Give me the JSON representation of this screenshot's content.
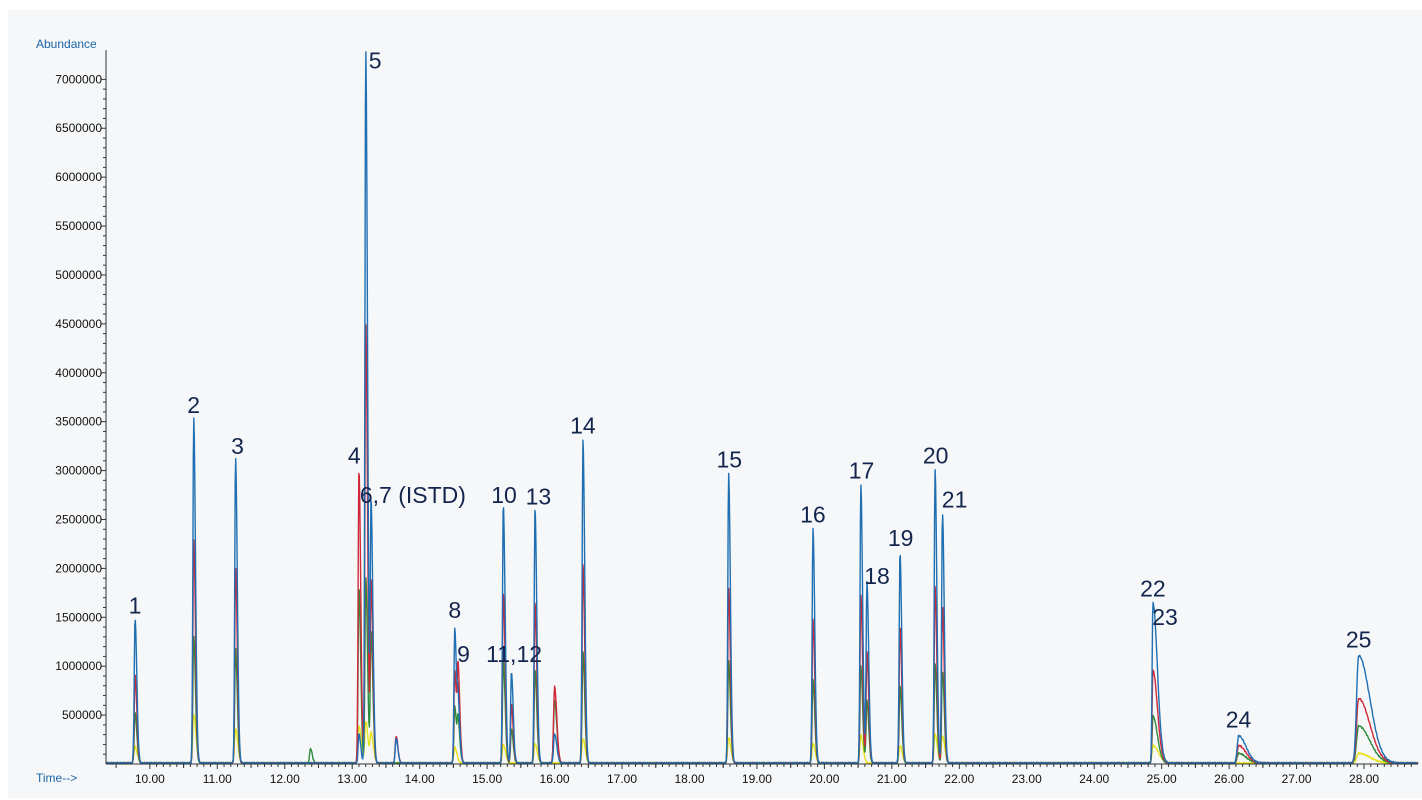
{
  "chart_data": {
    "type": "line",
    "xlabel": "Time-->",
    "ylabel": "Abundance",
    "xlim": [
      9.35,
      28.8
    ],
    "ylim": [
      0,
      7300000
    ],
    "x_ticks": [
      "10.00",
      "11.00",
      "12.00",
      "13.00",
      "14.00",
      "15.00",
      "16.00",
      "17.00",
      "18.00",
      "19.00",
      "20.00",
      "21.00",
      "22.00",
      "23.00",
      "24.00",
      "25.00",
      "26.00",
      "27.00",
      "28.00"
    ],
    "y_ticks": [
      "500000",
      "1000000",
      "1500000",
      "2000000",
      "2500000",
      "3000000",
      "3500000",
      "4000000",
      "4500000",
      "5000000",
      "5500000",
      "6000000",
      "6500000",
      "7000000"
    ],
    "series": [
      {
        "color": "#1f6fb2",
        "peaks": [
          {
            "t": 9.78,
            "h": 1480000,
            "w": 0.012
          },
          {
            "t": 10.65,
            "h": 3530000,
            "w": 0.012
          },
          {
            "t": 11.27,
            "h": 3130000,
            "w": 0.012
          },
          {
            "t": 13.1,
            "h": 300000,
            "w": 0.012
          },
          {
            "t": 13.2,
            "h": 7300000,
            "w": 0.012
          },
          {
            "t": 13.28,
            "h": 2650000,
            "w": 0.012
          },
          {
            "t": 13.65,
            "h": 250000,
            "w": 0.012
          },
          {
            "t": 14.52,
            "h": 1380000,
            "w": 0.012
          },
          {
            "t": 14.57,
            "h": 550000,
            "w": 0.012
          },
          {
            "t": 15.24,
            "h": 2650000,
            "w": 0.012
          },
          {
            "t": 15.36,
            "h": 930000,
            "w": 0.012
          },
          {
            "t": 15.71,
            "h": 2600000,
            "w": 0.012
          },
          {
            "t": 16.0,
            "h": 300000,
            "w": 0.015
          },
          {
            "t": 16.42,
            "h": 3300000,
            "w": 0.012
          },
          {
            "t": 18.58,
            "h": 2960000,
            "w": 0.012
          },
          {
            "t": 19.83,
            "h": 2400000,
            "w": 0.012
          },
          {
            "t": 20.54,
            "h": 2850000,
            "w": 0.012
          },
          {
            "t": 20.63,
            "h": 1850000,
            "w": 0.012
          },
          {
            "t": 21.12,
            "h": 2150000,
            "w": 0.012
          },
          {
            "t": 21.64,
            "h": 3000000,
            "w": 0.012
          },
          {
            "t": 21.75,
            "h": 2550000,
            "w": 0.012
          },
          {
            "t": 24.87,
            "h": 1640000,
            "w": 0.012
          },
          {
            "t": 26.14,
            "h": 280000,
            "w": 0.02
          },
          {
            "t": 27.92,
            "h": 1100000,
            "w": 0.03
          }
        ]
      },
      {
        "color": "#d0283a",
        "peaks": [
          {
            "t": 9.78,
            "h": 900000,
            "w": 0.012
          },
          {
            "t": 10.65,
            "h": 2290000,
            "w": 0.012
          },
          {
            "t": 11.27,
            "h": 2000000,
            "w": 0.012
          },
          {
            "t": 13.1,
            "h": 3000000,
            "w": 0.012
          },
          {
            "t": 13.2,
            "h": 4500000,
            "w": 0.012
          },
          {
            "t": 13.28,
            "h": 1850000,
            "w": 0.012
          },
          {
            "t": 13.65,
            "h": 280000,
            "w": 0.012
          },
          {
            "t": 14.52,
            "h": 950000,
            "w": 0.012
          },
          {
            "t": 14.57,
            "h": 900000,
            "w": 0.012
          },
          {
            "t": 15.24,
            "h": 1760000,
            "w": 0.012
          },
          {
            "t": 15.36,
            "h": 600000,
            "w": 0.012
          },
          {
            "t": 15.71,
            "h": 1640000,
            "w": 0.012
          },
          {
            "t": 16.0,
            "h": 780000,
            "w": 0.015
          },
          {
            "t": 16.42,
            "h": 2030000,
            "w": 0.012
          },
          {
            "t": 18.58,
            "h": 1790000,
            "w": 0.012
          },
          {
            "t": 19.83,
            "h": 1480000,
            "w": 0.012
          },
          {
            "t": 20.54,
            "h": 1720000,
            "w": 0.012
          },
          {
            "t": 20.63,
            "h": 1130000,
            "w": 0.012
          },
          {
            "t": 21.12,
            "h": 1400000,
            "w": 0.012
          },
          {
            "t": 21.64,
            "h": 1810000,
            "w": 0.012
          },
          {
            "t": 21.75,
            "h": 1600000,
            "w": 0.012
          },
          {
            "t": 24.87,
            "h": 950000,
            "w": 0.012
          },
          {
            "t": 26.14,
            "h": 180000,
            "w": 0.02
          },
          {
            "t": 27.92,
            "h": 660000,
            "w": 0.03
          }
        ]
      },
      {
        "color": "#2e8b3a",
        "peaks": [
          {
            "t": 9.78,
            "h": 520000,
            "w": 0.012
          },
          {
            "t": 10.65,
            "h": 1300000,
            "w": 0.012
          },
          {
            "t": 11.27,
            "h": 1170000,
            "w": 0.012
          },
          {
            "t": 13.1,
            "h": 1800000,
            "w": 0.012
          },
          {
            "t": 13.2,
            "h": 1900000,
            "w": 0.012
          },
          {
            "t": 13.28,
            "h": 1350000,
            "w": 0.012
          },
          {
            "t": 12.38,
            "h": 150000,
            "w": 0.012
          },
          {
            "t": 14.52,
            "h": 580000,
            "w": 0.012
          },
          {
            "t": 14.57,
            "h": 400000,
            "w": 0.012
          },
          {
            "t": 15.24,
            "h": 1050000,
            "w": 0.012
          },
          {
            "t": 15.36,
            "h": 350000,
            "w": 0.012
          },
          {
            "t": 15.71,
            "h": 960000,
            "w": 0.012
          },
          {
            "t": 16.0,
            "h": 640000,
            "w": 0.015
          },
          {
            "t": 16.42,
            "h": 1140000,
            "w": 0.012
          },
          {
            "t": 18.58,
            "h": 1040000,
            "w": 0.012
          },
          {
            "t": 19.83,
            "h": 850000,
            "w": 0.012
          },
          {
            "t": 20.54,
            "h": 1000000,
            "w": 0.012
          },
          {
            "t": 20.63,
            "h": 640000,
            "w": 0.012
          },
          {
            "t": 21.12,
            "h": 790000,
            "w": 0.012
          },
          {
            "t": 21.64,
            "h": 1020000,
            "w": 0.012
          },
          {
            "t": 21.75,
            "h": 940000,
            "w": 0.012
          },
          {
            "t": 24.87,
            "h": 480000,
            "w": 0.012
          },
          {
            "t": 26.14,
            "h": 100000,
            "w": 0.02
          },
          {
            "t": 27.92,
            "h": 380000,
            "w": 0.03
          }
        ]
      },
      {
        "color": "#e8e21a",
        "peaks": [
          {
            "t": 9.78,
            "h": 170000,
            "w": 0.015
          },
          {
            "t": 10.65,
            "h": 500000,
            "w": 0.015
          },
          {
            "t": 11.27,
            "h": 350000,
            "w": 0.015
          },
          {
            "t": 13.1,
            "h": 380000,
            "w": 0.015
          },
          {
            "t": 13.2,
            "h": 430000,
            "w": 0.015
          },
          {
            "t": 13.28,
            "h": 300000,
            "w": 0.015
          },
          {
            "t": 14.52,
            "h": 160000,
            "w": 0.015
          },
          {
            "t": 15.24,
            "h": 190000,
            "w": 0.015
          },
          {
            "t": 15.71,
            "h": 200000,
            "w": 0.015
          },
          {
            "t": 16.42,
            "h": 250000,
            "w": 0.015
          },
          {
            "t": 18.58,
            "h": 260000,
            "w": 0.015
          },
          {
            "t": 19.83,
            "h": 200000,
            "w": 0.015
          },
          {
            "t": 20.54,
            "h": 290000,
            "w": 0.015
          },
          {
            "t": 21.12,
            "h": 180000,
            "w": 0.015
          },
          {
            "t": 21.64,
            "h": 300000,
            "w": 0.015
          },
          {
            "t": 21.75,
            "h": 280000,
            "w": 0.015
          },
          {
            "t": 24.87,
            "h": 180000,
            "w": 0.015
          },
          {
            "t": 27.92,
            "h": 100000,
            "w": 0.03
          }
        ]
      }
    ],
    "peak_labels": [
      {
        "text": "1",
        "t": 9.78,
        "v": 1500000
      },
      {
        "text": "2",
        "t": 10.65,
        "v": 3550000
      },
      {
        "text": "3",
        "t": 11.3,
        "v": 3130000
      },
      {
        "text": "4",
        "t": 13.03,
        "v": 3030000
      },
      {
        "text": "5",
        "t": 13.34,
        "v": 7070000
      },
      {
        "text": "6,7 (ISTD)",
        "t": 13.9,
        "v": 2630000
      },
      {
        "text": "8",
        "t": 14.52,
        "v": 1450000
      },
      {
        "text": "9",
        "t": 14.65,
        "v": 1000000
      },
      {
        "text": "10",
        "t": 15.25,
        "v": 2630000
      },
      {
        "text": "11,12",
        "t": 15.4,
        "v": 1000000
      },
      {
        "text": "13",
        "t": 15.76,
        "v": 2610000
      },
      {
        "text": "14",
        "t": 16.42,
        "v": 3340000
      },
      {
        "text": "15",
        "t": 18.59,
        "v": 2990000
      },
      {
        "text": "16",
        "t": 19.83,
        "v": 2430000
      },
      {
        "text": "17",
        "t": 20.55,
        "v": 2880000
      },
      {
        "text": "18",
        "t": 20.78,
        "v": 1800000
      },
      {
        "text": "19",
        "t": 21.13,
        "v": 2190000
      },
      {
        "text": "20",
        "t": 21.65,
        "v": 3030000
      },
      {
        "text": "21",
        "t": 21.93,
        "v": 2580000
      },
      {
        "text": "22",
        "t": 24.87,
        "v": 1670000
      },
      {
        "text": "23",
        "t": 25.05,
        "v": 1380000
      },
      {
        "text": "24",
        "t": 26.14,
        "v": 330000
      },
      {
        "text": "25",
        "t": 27.92,
        "v": 1150000
      }
    ]
  }
}
